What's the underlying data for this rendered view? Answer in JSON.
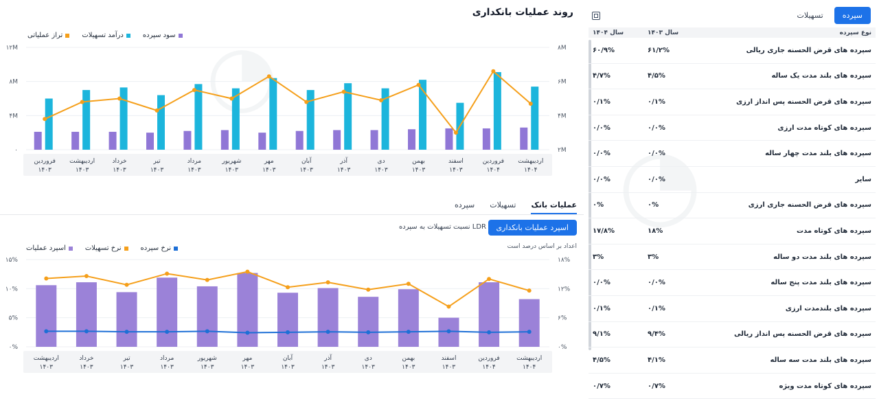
{
  "page_title": "روند عملیات بانکداری",
  "top_chart": {
    "legend": [
      {
        "name": "تراز عملیاتی",
        "color": "#f59f1a"
      },
      {
        "name": "درآمد تسهیلات",
        "color": "#1cb5dc"
      },
      {
        "name": "سود سپرده",
        "color": "#9077d6"
      }
    ]
  },
  "bottom_header": {
    "tabs": [
      {
        "label": "عملیات بانک",
        "active": true
      },
      {
        "label": "تسهیلات",
        "active": false
      },
      {
        "label": "سپرده",
        "active": false
      }
    ],
    "spread_button": "اسپرد عملیات بانکداری",
    "ldr_link": "نسبت تسهیلات به سپرده LDR",
    "pct_note": "اعداد بر اساس درصد است"
  },
  "bottom_chart": {
    "legend": [
      {
        "name": "اسپرد عملیات",
        "color": "#9b82d8"
      },
      {
        "name": "نرخ تسهیلات",
        "color": "#f59f1a"
      },
      {
        "name": "نرخ سپرده",
        "color": "#1d6fd6"
      }
    ]
  },
  "chart_data": [
    {
      "type": "bar",
      "x_order": "right-to-left",
      "categories": [
        "اردیبهشت ۱۴۰۴",
        "فروردین ۱۴۰۴",
        "اسفند ۱۴۰۳",
        "بهمن ۱۴۰۳",
        "دی ۱۴۰۳",
        "آذر ۱۴۰۳",
        "آبان ۱۴۰۳",
        "مهر ۱۴۰۳",
        "شهریور ۱۴۰۳",
        "مرداد ۱۴۰۳",
        "تیر ۱۴۰۳",
        "خرداد ۱۴۰۳",
        "اردیبهشت ۱۴۰۳",
        "فروردین ۱۴۰۳"
      ],
      "left_axis": {
        "ticks": [
          "۰",
          "۴M",
          "۸M",
          "۱۲M"
        ],
        "range": [
          0,
          12
        ]
      },
      "right_axis": {
        "ticks": [
          "۲M",
          "۴M",
          "۶M",
          "۸M"
        ],
        "range": [
          2,
          8
        ]
      },
      "series": [
        {
          "name": "سود سپرده",
          "axis": "left",
          "values": [
            2.6,
            2.5,
            2.5,
            2.4,
            2.3,
            2.3,
            2.2,
            2.0,
            2.3,
            2.2,
            2.0,
            2.1,
            2.1,
            2.1
          ]
        },
        {
          "name": "درآمد تسهیلات",
          "axis": "left",
          "values": [
            7.4,
            9.1,
            5.5,
            8.2,
            7.2,
            7.8,
            7.0,
            8.4,
            7.2,
            7.7,
            6.4,
            7.3,
            7.0,
            6.0
          ]
        },
        {
          "name": "تراز عملیاتی",
          "axis": "right",
          "values": [
            4.7,
            6.6,
            3.0,
            5.8,
            4.9,
            5.4,
            4.8,
            6.3,
            5.0,
            5.5,
            4.3,
            5.0,
            4.8,
            3.8
          ]
        }
      ]
    },
    {
      "type": "bar",
      "x_order": "right-to-left",
      "categories": [
        "اردیبهشت ۱۴۰۴",
        "فروردین ۱۴۰۴",
        "اسفند ۱۴۰۳",
        "بهمن ۱۴۰۳",
        "دی ۱۴۰۳",
        "آذر ۱۴۰۳",
        "آبان ۱۴۰۳",
        "مهر ۱۴۰۳",
        "شهریور ۱۴۰۳",
        "مرداد ۱۴۰۳",
        "تیر ۱۴۰۳",
        "خرداد ۱۴۰۳",
        "اردیبهشت ۱۴۰۳"
      ],
      "left_axis": {
        "ticks": [
          "۰%",
          "۵%",
          "۱۰%",
          "۱۵%"
        ],
        "range": [
          0,
          15
        ]
      },
      "right_axis": {
        "ticks": [
          "۰%",
          "۶%",
          "۱۲%",
          "۱۸%"
        ],
        "range": [
          0,
          18
        ]
      },
      "series": [
        {
          "name": "اسپرد عملیات",
          "axis": "left",
          "values": [
            8.2,
            11.1,
            5.0,
            9.9,
            8.6,
            10.1,
            9.3,
            12.7,
            10.4,
            11.9,
            9.4,
            11.1,
            10.6
          ]
        },
        {
          "name": "نرخ تسهیلات",
          "axis": "right",
          "values": [
            11.6,
            14.0,
            8.3,
            13.0,
            11.8,
            13.3,
            12.3,
            15.5,
            13.8,
            15.1,
            12.8,
            14.6,
            14.1
          ]
        },
        {
          "name": "نرخ سپرده",
          "axis": "right",
          "values": [
            3.1,
            3.0,
            3.2,
            3.1,
            3.0,
            3.1,
            3.0,
            2.9,
            3.2,
            3.1,
            3.1,
            3.2,
            3.2
          ]
        }
      ]
    }
  ],
  "right_panel": {
    "tabs": [
      {
        "label": "سپرده",
        "active": true
      },
      {
        "label": "تسهیلات",
        "active": false
      }
    ],
    "columns": [
      "نوع سپرده",
      "سال ۱۴۰۳",
      "سال ۱۴۰۴"
    ],
    "rows": [
      [
        "سپرده های قرض الحسنه جاری ریالی",
        "۶۱/۲%",
        "۶۰/۹%"
      ],
      [
        "سپرده های بلند مدت یک ساله",
        "۴/۵%",
        "۴/۷%"
      ],
      [
        "سپرده های قرض الحسنه پس انداز ارزی",
        "۰/۱%",
        "۰/۱%"
      ],
      [
        "سپرده های کوتاه مدت ارزی",
        "۰/۰%",
        "۰/۰%"
      ],
      [
        "سپرده های بلند مدت چهار ساله",
        "۰/۰%",
        "۰/۰%"
      ],
      [
        "سایر",
        "۰/۰%",
        "۰/۰%"
      ],
      [
        "سپرده های قرض الحسنه جاری ارزی",
        "۰%",
        "۰%"
      ],
      [
        "سپرده های کوتاه مدت",
        "۱۸%",
        "۱۷/۸%"
      ],
      [
        "سپرده های بلند مدت دو ساله",
        "۳%",
        "۳%"
      ],
      [
        "سپرده های بلند مدت پنج ساله",
        "۰/۰%",
        "۰/۰%"
      ],
      [
        "سپرده های بلندمدت ارزی",
        "۰/۱%",
        "۰/۱%"
      ],
      [
        "سپرده های قرض الحسنه پس انداز ریالی",
        "۹/۴%",
        "۹/۱%"
      ],
      [
        "سپرده های بلند مدت سه ساله",
        "۴/۱%",
        "۴/۵%"
      ],
      [
        "سپرده های کوتاه مدت ویژه",
        "۰/۷%",
        "۰/۷%"
      ]
    ]
  }
}
